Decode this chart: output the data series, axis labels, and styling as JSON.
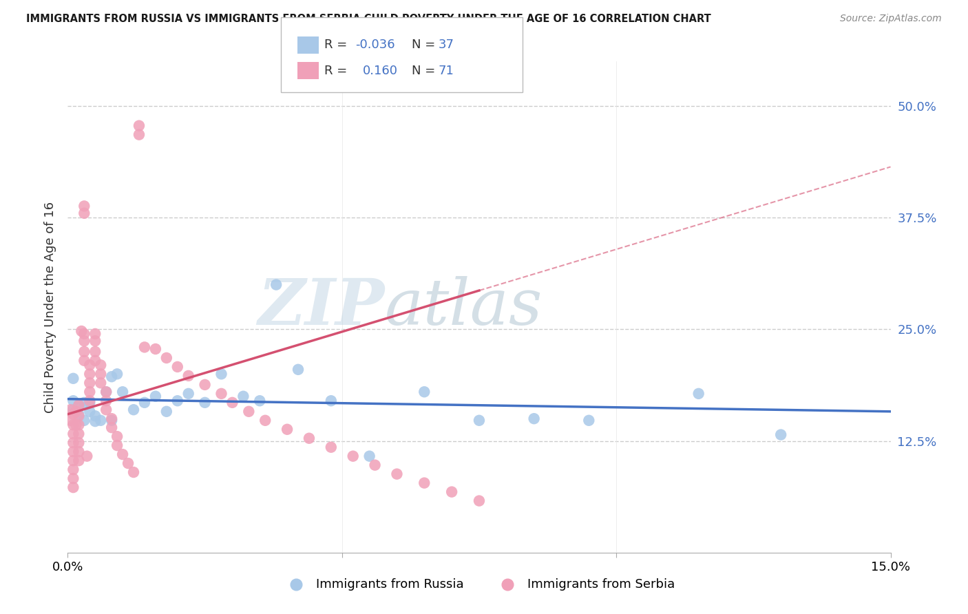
{
  "title": "IMMIGRANTS FROM RUSSIA VS IMMIGRANTS FROM SERBIA CHILD POVERTY UNDER THE AGE OF 16 CORRELATION CHART",
  "source": "Source: ZipAtlas.com",
  "ylabel": "Child Poverty Under the Age of 16",
  "xlim": [
    0.0,
    0.15
  ],
  "ylim": [
    0.0,
    0.55
  ],
  "ytick_vals": [
    0.125,
    0.25,
    0.375,
    0.5
  ],
  "ytick_labels": [
    "12.5%",
    "25.0%",
    "37.5%",
    "50.0%"
  ],
  "xtick_vals": [
    0.0,
    0.05,
    0.1,
    0.15
  ],
  "xtick_labels": [
    "0.0%",
    "",
    "",
    "15.0%"
  ],
  "color_russia": "#a8c8e8",
  "color_serbia": "#f0a0b8",
  "line_color_russia": "#4472c4",
  "line_color_serbia": "#d45070",
  "watermark": "ZIPatlas",
  "russia_x": [
    0.001,
    0.001,
    0.001,
    0.002,
    0.002,
    0.003,
    0.003,
    0.004,
    0.004,
    0.005,
    0.005,
    0.006,
    0.007,
    0.008,
    0.008,
    0.009,
    0.01,
    0.012,
    0.014,
    0.016,
    0.018,
    0.02,
    0.022,
    0.025,
    0.028,
    0.032,
    0.035,
    0.038,
    0.042,
    0.048,
    0.055,
    0.065,
    0.075,
    0.085,
    0.095,
    0.115,
    0.13
  ],
  "russia_y": [
    0.195,
    0.17,
    0.16,
    0.165,
    0.155,
    0.168,
    0.148,
    0.168,
    0.158,
    0.153,
    0.147,
    0.148,
    0.18,
    0.197,
    0.148,
    0.2,
    0.18,
    0.16,
    0.168,
    0.175,
    0.158,
    0.17,
    0.178,
    0.168,
    0.2,
    0.175,
    0.17,
    0.3,
    0.205,
    0.17,
    0.108,
    0.18,
    0.148,
    0.15,
    0.148,
    0.178,
    0.132
  ],
  "serbia_x": [
    0.0005,
    0.0005,
    0.001,
    0.001,
    0.001,
    0.001,
    0.001,
    0.001,
    0.001,
    0.001,
    0.001,
    0.0015,
    0.0015,
    0.002,
    0.002,
    0.002,
    0.002,
    0.002,
    0.002,
    0.002,
    0.0025,
    0.003,
    0.003,
    0.003,
    0.003,
    0.003,
    0.003,
    0.0035,
    0.004,
    0.004,
    0.004,
    0.004,
    0.004,
    0.005,
    0.005,
    0.005,
    0.005,
    0.006,
    0.006,
    0.006,
    0.007,
    0.007,
    0.007,
    0.008,
    0.008,
    0.009,
    0.009,
    0.01,
    0.011,
    0.012,
    0.013,
    0.013,
    0.014,
    0.016,
    0.018,
    0.02,
    0.022,
    0.025,
    0.028,
    0.03,
    0.033,
    0.036,
    0.04,
    0.044,
    0.048,
    0.052,
    0.056,
    0.06,
    0.065,
    0.07,
    0.075
  ],
  "serbia_y": [
    0.16,
    0.148,
    0.155,
    0.143,
    0.133,
    0.123,
    0.113,
    0.103,
    0.093,
    0.083,
    0.073,
    0.158,
    0.143,
    0.165,
    0.153,
    0.143,
    0.133,
    0.123,
    0.113,
    0.103,
    0.248,
    0.388,
    0.38,
    0.245,
    0.237,
    0.225,
    0.215,
    0.108,
    0.21,
    0.2,
    0.19,
    0.18,
    0.17,
    0.245,
    0.237,
    0.225,
    0.215,
    0.21,
    0.2,
    0.19,
    0.18,
    0.17,
    0.16,
    0.15,
    0.14,
    0.13,
    0.12,
    0.11,
    0.1,
    0.09,
    0.478,
    0.468,
    0.23,
    0.228,
    0.218,
    0.208,
    0.198,
    0.188,
    0.178,
    0.168,
    0.158,
    0.148,
    0.138,
    0.128,
    0.118,
    0.108,
    0.098,
    0.088,
    0.078,
    0.068,
    0.058
  ]
}
